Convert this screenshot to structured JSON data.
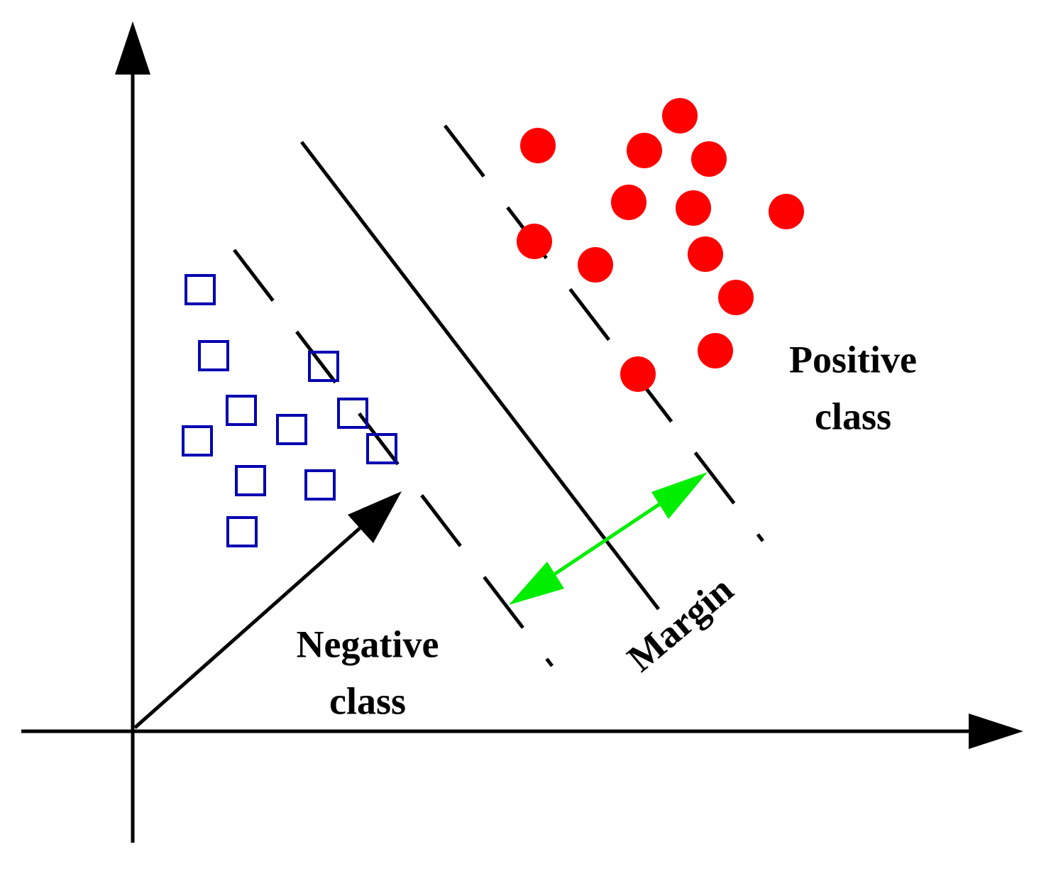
{
  "labels": {
    "positive": [
      "Positive",
      "class"
    ],
    "negative": [
      "Negative",
      "class"
    ],
    "margin": "Margin"
  }
}
